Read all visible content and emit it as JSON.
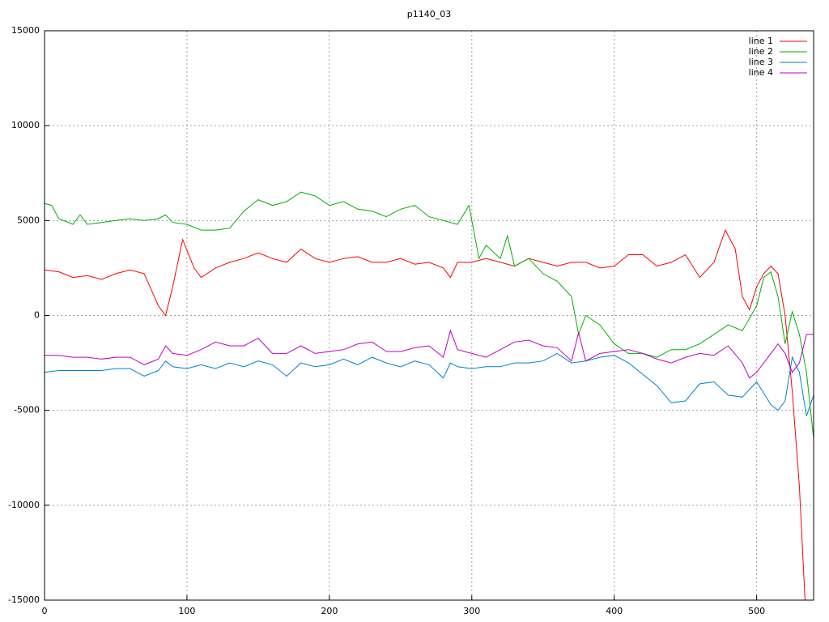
{
  "chart_data": {
    "type": "line",
    "title": "p1140_03",
    "xlim": [
      0,
      540
    ],
    "ylim": [
      -15000,
      15000
    ],
    "xticks": [
      0,
      100,
      200,
      300,
      400,
      500
    ],
    "yticks": [
      -15000,
      -10000,
      -5000,
      0,
      5000,
      10000,
      15000
    ],
    "grid": true,
    "legend": "top-right",
    "series": [
      {
        "name": "line 1",
        "color": "#ff0000",
        "x": [
          0,
          10,
          20,
          30,
          40,
          50,
          60,
          70,
          80,
          85,
          90,
          97,
          105,
          110,
          120,
          130,
          140,
          150,
          160,
          170,
          180,
          190,
          200,
          210,
          220,
          230,
          240,
          250,
          260,
          270,
          280,
          285,
          290,
          300,
          310,
          320,
          330,
          340,
          350,
          360,
          370,
          380,
          390,
          400,
          410,
          420,
          430,
          440,
          450,
          460,
          470,
          478,
          485,
          490,
          495,
          500,
          505,
          510,
          515,
          520,
          525,
          530,
          534
        ],
        "values": [
          2400,
          2300,
          2000,
          2100,
          1900,
          2200,
          2400,
          2200,
          500,
          0,
          1500,
          4000,
          2500,
          2000,
          2500,
          2800,
          3000,
          3300,
          3000,
          2800,
          3500,
          3000,
          2800,
          3000,
          3100,
          2800,
          2800,
          3000,
          2700,
          2800,
          2500,
          2000,
          2800,
          2800,
          3000,
          2800,
          2600,
          3000,
          2800,
          2600,
          2800,
          2800,
          2500,
          2600,
          3200,
          3200,
          2600,
          2800,
          3200,
          2000,
          2800,
          4500,
          3500,
          1000,
          300,
          1500,
          2200,
          2600,
          2200,
          0,
          -4000,
          -9000,
          -15000
        ]
      },
      {
        "name": "line 2",
        "color": "#00b000",
        "x": [
          0,
          5,
          10,
          20,
          25,
          30,
          40,
          50,
          60,
          70,
          80,
          85,
          90,
          100,
          110,
          120,
          130,
          140,
          150,
          160,
          170,
          180,
          190,
          200,
          210,
          220,
          230,
          240,
          250,
          260,
          270,
          280,
          290,
          298,
          305,
          310,
          320,
          325,
          330,
          340,
          350,
          360,
          370,
          375,
          380,
          390,
          400,
          410,
          420,
          430,
          440,
          450,
          460,
          470,
          480,
          490,
          500,
          505,
          510,
          515,
          520,
          525,
          530,
          535,
          540
        ],
        "values": [
          5900,
          5800,
          5100,
          4800,
          5300,
          4800,
          4900,
          5000,
          5100,
          5000,
          5100,
          5300,
          4900,
          4800,
          4500,
          4500,
          4600,
          5500,
          6100,
          5800,
          6000,
          6500,
          6300,
          5800,
          6000,
          5600,
          5500,
          5200,
          5600,
          5800,
          5200,
          5000,
          4800,
          5800,
          3000,
          3700,
          3000,
          4200,
          2600,
          3000,
          2200,
          1800,
          1000,
          -1000,
          0,
          -500,
          -1500,
          -2000,
          -2000,
          -2200,
          -1800,
          -1800,
          -1500,
          -1000,
          -500,
          -800,
          500,
          2000,
          2300,
          1000,
          -1500,
          200,
          -1000,
          -3000,
          -6500
        ]
      },
      {
        "name": "line 3",
        "color": "#0080d0",
        "x": [
          0,
          10,
          20,
          30,
          40,
          50,
          60,
          70,
          80,
          85,
          90,
          100,
          110,
          120,
          130,
          140,
          150,
          160,
          170,
          180,
          190,
          200,
          210,
          220,
          230,
          240,
          250,
          260,
          270,
          280,
          285,
          290,
          300,
          310,
          320,
          330,
          340,
          350,
          360,
          370,
          380,
          390,
          400,
          410,
          420,
          430,
          440,
          450,
          460,
          470,
          480,
          490,
          500,
          510,
          515,
          520,
          525,
          530,
          535,
          540
        ],
        "values": [
          -3000,
          -2900,
          -2900,
          -2900,
          -2900,
          -2800,
          -2800,
          -3200,
          -2900,
          -2400,
          -2700,
          -2800,
          -2600,
          -2800,
          -2500,
          -2700,
          -2400,
          -2600,
          -3200,
          -2500,
          -2700,
          -2600,
          -2300,
          -2600,
          -2200,
          -2500,
          -2700,
          -2400,
          -2600,
          -3300,
          -2500,
          -2700,
          -2800,
          -2700,
          -2700,
          -2500,
          -2500,
          -2400,
          -2000,
          -2500,
          -2400,
          -2200,
          -2100,
          -2500,
          -3100,
          -3700,
          -4600,
          -4500,
          -3600,
          -3500,
          -4200,
          -4300,
          -3500,
          -4700,
          -5000,
          -4500,
          -2200,
          -3000,
          -5300,
          -4200
        ]
      },
      {
        "name": "line 4",
        "color": "#c000c0",
        "x": [
          0,
          10,
          20,
          30,
          40,
          50,
          60,
          70,
          80,
          85,
          90,
          100,
          110,
          120,
          130,
          140,
          150,
          160,
          170,
          180,
          190,
          200,
          210,
          220,
          230,
          240,
          250,
          260,
          270,
          280,
          285,
          290,
          300,
          310,
          320,
          330,
          340,
          350,
          360,
          370,
          375,
          380,
          390,
          400,
          410,
          420,
          430,
          440,
          450,
          460,
          470,
          480,
          490,
          495,
          500,
          510,
          515,
          520,
          525,
          530,
          535,
          540
        ],
        "values": [
          -2100,
          -2100,
          -2200,
          -2200,
          -2300,
          -2200,
          -2200,
          -2600,
          -2300,
          -1600,
          -2000,
          -2100,
          -1800,
          -1400,
          -1600,
          -1600,
          -1200,
          -2000,
          -2000,
          -1600,
          -2000,
          -1900,
          -1800,
          -1500,
          -1400,
          -1900,
          -1900,
          -1700,
          -1600,
          -2200,
          -800,
          -1800,
          -2000,
          -2200,
          -1800,
          -1400,
          -1300,
          -1600,
          -1700,
          -2400,
          -900,
          -2400,
          -2000,
          -1900,
          -1800,
          -2000,
          -2300,
          -2500,
          -2200,
          -2000,
          -2100,
          -1600,
          -2500,
          -3300,
          -3000,
          -2000,
          -1500,
          -2000,
          -3000,
          -2500,
          -1000,
          -1000
        ]
      }
    ]
  }
}
